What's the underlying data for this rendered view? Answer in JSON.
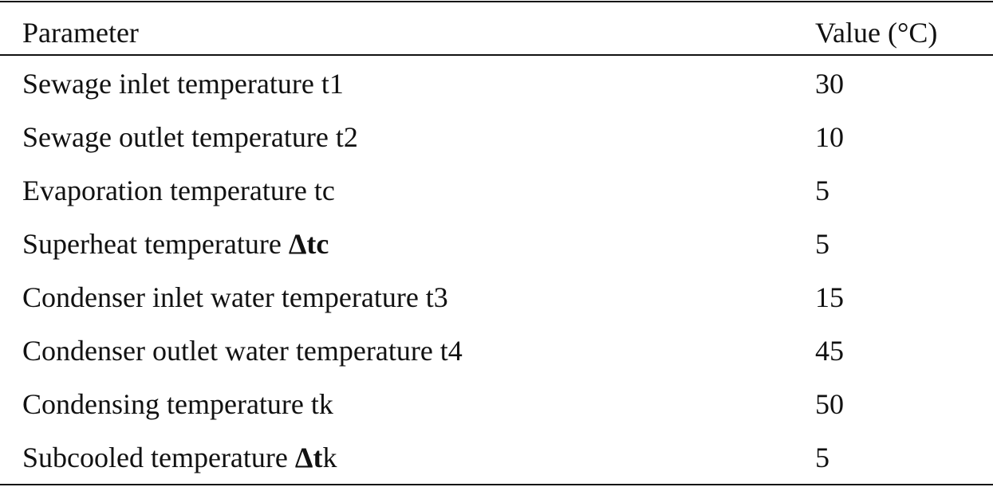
{
  "table": {
    "header": [
      "Parameter",
      "Value (°C)"
    ],
    "rows": [
      [
        [
          "Sewage inlet temperature t1"
        ],
        30
      ],
      [
        [
          "Sewage outlet temperature t2"
        ],
        10
      ],
      [
        [
          "Evaporation temperature tc"
        ],
        5
      ],
      [
        [
          "Superheat temperature ",
          {
            "text": "Δtc",
            "bold": true
          }
        ],
        5
      ],
      [
        [
          "Condenser inlet water temperature t3"
        ],
        15
      ],
      [
        [
          "Condenser outlet water temperature t4"
        ],
        45
      ],
      [
        [
          "Condensing temperature tk"
        ],
        50
      ],
      [
        [
          "Subcooled temperature ",
          {
            "text": "Δt",
            "bold": true
          },
          "k"
        ],
        5
      ]
    ]
  }
}
